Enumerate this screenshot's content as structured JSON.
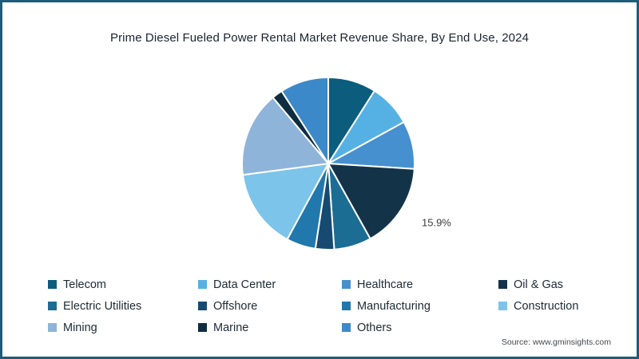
{
  "header": {
    "title": "Prime Diesel Fueled Power Rental Market Revenue Share, By End Use, 2024"
  },
  "footer": {
    "source": "Source: www.gminsights.com"
  },
  "chart_data": {
    "type": "pie",
    "title": "Prime Diesel Fueled Power Rental Market Revenue Share, By End Use, 2024",
    "start_angle_deg_from_top": 0,
    "direction": "clockwise",
    "legend_position": "bottom",
    "data_label_color": "#3c3c3c",
    "slices": [
      {
        "label": "Telecom",
        "value": 9.0,
        "color": "#0b5c7d"
      },
      {
        "label": "Data Center",
        "value": 8.0,
        "color": "#55b1e4"
      },
      {
        "label": "Healthcare",
        "value": 9.0,
        "color": "#4690d0"
      },
      {
        "label": "Oil & Gas",
        "value": 15.9,
        "color": "#133349",
        "data_label": "15.9%"
      },
      {
        "label": "Electric Utilities",
        "value": 7.0,
        "color": "#1b6d94"
      },
      {
        "label": "Offshore",
        "value": 3.5,
        "color": "#174a70"
      },
      {
        "label": "Manufacturing",
        "value": 5.5,
        "color": "#2178ad"
      },
      {
        "label": "Construction",
        "value": 15.0,
        "color": "#7cc4ea"
      },
      {
        "label": "Mining",
        "value": 16.0,
        "color": "#8fb4da"
      },
      {
        "label": "Marine",
        "value": 2.0,
        "color": "#0e2d40"
      },
      {
        "label": "Others",
        "value": 9.1,
        "color": "#3b89c9"
      }
    ]
  }
}
